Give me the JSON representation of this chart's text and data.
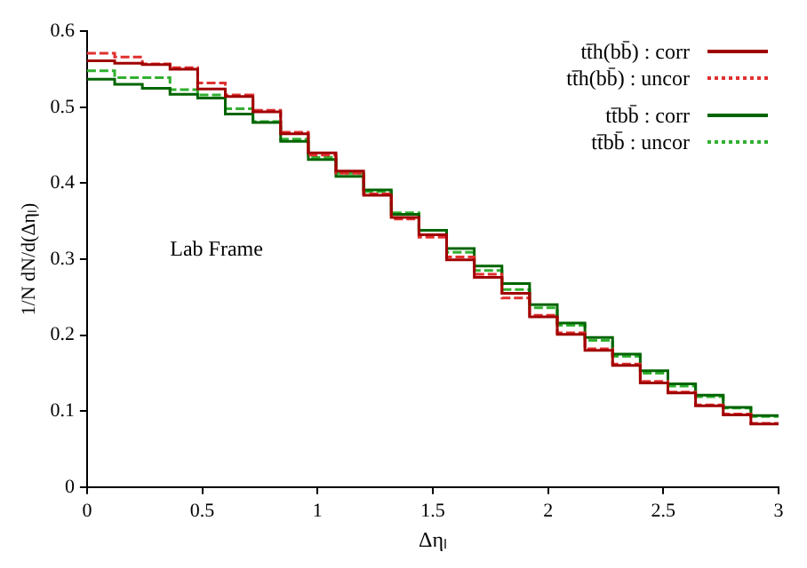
{
  "chart_data": {
    "type": "histogram",
    "xlabel": "Δηₗ",
    "ylabel": "1/N dN/d(Δηₗ)",
    "annotations": [
      "Lab Frame"
    ],
    "bins": [
      0,
      0.12,
      0.24,
      0.36,
      0.48,
      0.6,
      0.72,
      0.84,
      0.96,
      1.08,
      1.2,
      1.32,
      1.44,
      1.56,
      1.68,
      1.8,
      1.92,
      2.04,
      2.16,
      2.28,
      2.4,
      2.52,
      2.64,
      2.76,
      2.88,
      3
    ],
    "series": [
      {
        "name": "tt̄h(bb̄) : corr",
        "color": "#a00000",
        "line_style": "solid",
        "values": [
          0.561,
          0.558,
          0.556,
          0.55,
          0.524,
          0.514,
          0.494,
          0.465,
          0.44,
          0.416,
          0.384,
          0.355,
          0.332,
          0.299,
          0.276,
          0.255,
          0.224,
          0.201,
          0.18,
          0.16,
          0.137,
          0.124,
          0.107,
          0.095,
          0.083
        ]
      },
      {
        "name": "tt̄h(bb̄) : uncor",
        "color": "#e03030",
        "line_style": "dotted",
        "values": [
          0.571,
          0.566,
          0.557,
          0.552,
          0.532,
          0.516,
          0.496,
          0.467,
          0.437,
          0.413,
          0.386,
          0.353,
          0.329,
          0.303,
          0.28,
          0.249,
          0.226,
          0.203,
          0.182,
          0.162,
          0.139,
          0.125,
          0.108,
          0.096,
          0.084
        ]
      },
      {
        "name": "tt̄bb̄ : corr",
        "color": "#006400",
        "line_style": "solid",
        "values": [
          0.537,
          0.53,
          0.525,
          0.517,
          0.512,
          0.491,
          0.48,
          0.455,
          0.431,
          0.409,
          0.391,
          0.359,
          0.338,
          0.314,
          0.291,
          0.268,
          0.24,
          0.216,
          0.197,
          0.175,
          0.153,
          0.136,
          0.121,
          0.105,
          0.094
        ]
      },
      {
        "name": "tt̄bb̄ : uncor",
        "color": "#30b030",
        "line_style": "dotted",
        "values": [
          0.548,
          0.539,
          0.539,
          0.523,
          0.516,
          0.498,
          0.481,
          0.458,
          0.434,
          0.413,
          0.389,
          0.361,
          0.338,
          0.309,
          0.285,
          0.26,
          0.236,
          0.213,
          0.193,
          0.172,
          0.15,
          0.133,
          0.119,
          0.104,
          0.093
        ]
      }
    ],
    "xlim": [
      0,
      3
    ],
    "xticks": [
      0,
      0.5,
      1,
      1.5,
      2,
      2.5,
      3
    ],
    "ylim": [
      0,
      0.6
    ],
    "yticks": [
      0,
      0.1,
      0.2,
      0.3,
      0.4,
      0.5,
      0.6
    ],
    "grid": false,
    "legend": "top right"
  }
}
